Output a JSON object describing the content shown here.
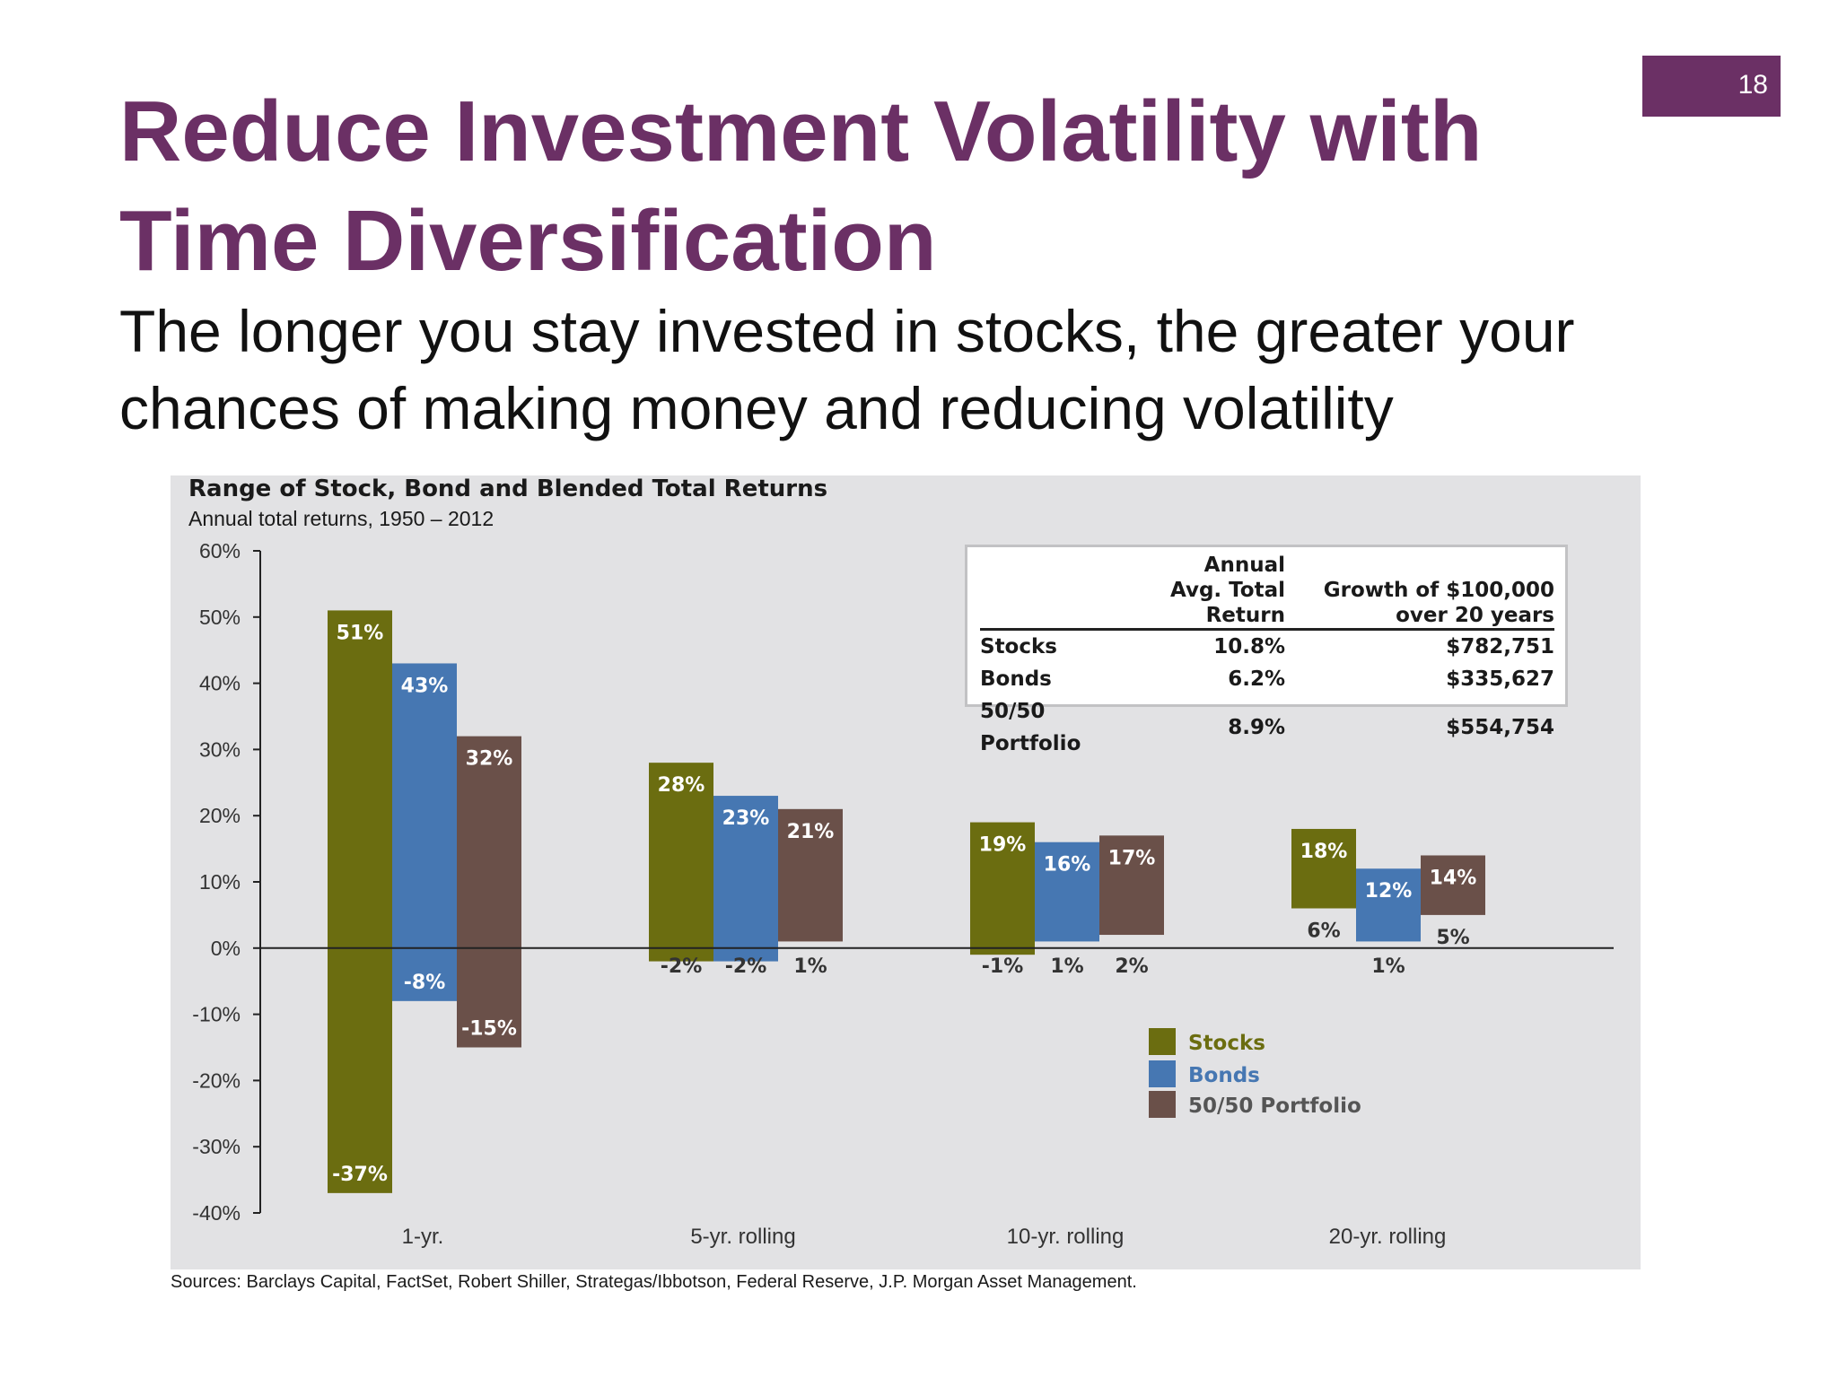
{
  "slide": {
    "page_number": "18",
    "title": "Reduce Investment Volatility with Time Diversification",
    "subtitle": "The longer you stay invested in stocks, the greater your chances of making money and reducing volatility",
    "sources": "Sources: Barclays Capital, FactSet, Robert Shiller, Strategas/Ibbotson, Federal Reserve, J.P. Morgan Asset Management."
  },
  "summary_table": {
    "header_avg": "Annual Avg. Total Return",
    "header_growth": "Growth of $100,000 over 20 years",
    "rows": [
      {
        "name": "Stocks",
        "avg": "10.8%",
        "growth": "$782,751"
      },
      {
        "name": "Bonds",
        "avg": "6.2%",
        "growth": "$335,627"
      },
      {
        "name": "50/50 Portfolio",
        "avg": "8.9%",
        "growth": "$554,754"
      }
    ]
  },
  "chart_data": {
    "type": "bar",
    "subtype": "floating-range",
    "title": "Range of Stock, Bond and Blended Total Returns",
    "subtitle": "Annual total returns, 1950 – 2012",
    "xlabel": "",
    "ylabel": "",
    "ylim": [
      -40,
      60
    ],
    "yticks": [
      60,
      50,
      40,
      30,
      20,
      10,
      0,
      -10,
      -20,
      -30,
      -40
    ],
    "ytick_labels": [
      "60%",
      "50%",
      "40%",
      "30%",
      "20%",
      "10%",
      "0%",
      "-10%",
      "-20%",
      "-30%",
      "-40%"
    ],
    "grid": false,
    "legend_position": "bottom-right",
    "categories": [
      "1-yr.",
      "5-yr. rolling",
      "10-yr. rolling",
      "20-yr. rolling"
    ],
    "series": [
      {
        "name": "Stocks",
        "color": "#6b6d10",
        "high": [
          51,
          28,
          19,
          18
        ],
        "low": [
          -37,
          -2,
          -1,
          6
        ],
        "high_labels": [
          "51%",
          "28%",
          "19%",
          "18%"
        ],
        "low_labels": [
          "-37%",
          "-2%",
          "-1%",
          "6%"
        ]
      },
      {
        "name": "Bonds",
        "color": "#4677b2",
        "high": [
          43,
          23,
          16,
          12
        ],
        "low": [
          -8,
          -2,
          1,
          1
        ],
        "high_labels": [
          "43%",
          "23%",
          "16%",
          "12%"
        ],
        "low_labels": [
          "-8%",
          "-2%",
          "1%",
          "1%"
        ]
      },
      {
        "name": "50/50 Portfolio",
        "color": "#6a5049",
        "high": [
          32,
          21,
          17,
          14
        ],
        "low": [
          -15,
          1,
          2,
          5
        ],
        "high_labels": [
          "32%",
          "21%",
          "17%",
          "14%"
        ],
        "low_labels": [
          "-15%",
          "1%",
          "2%",
          "5%"
        ]
      }
    ]
  }
}
